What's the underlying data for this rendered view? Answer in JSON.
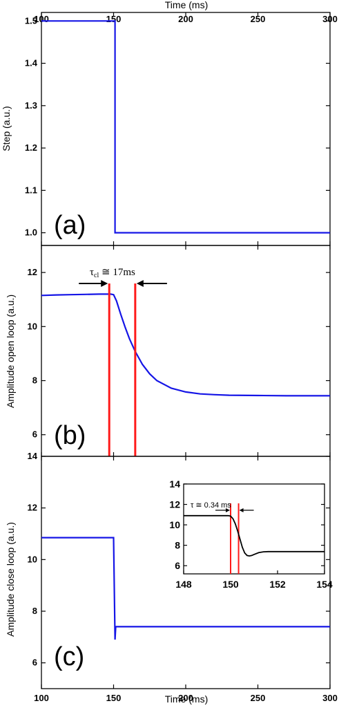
{
  "chart_data": [
    {
      "id": "a",
      "type": "line",
      "panel_label": "(a)",
      "xlabel_top": "Time (ms)",
      "ylabel": "Step (a.u.)",
      "xlim": [
        100,
        300
      ],
      "ylim": [
        0.97,
        1.52
      ],
      "xticks": [
        100,
        150,
        200,
        250,
        300
      ],
      "yticks": [
        1.0,
        1.1,
        1.2,
        1.3,
        1.4,
        1.5
      ],
      "series": [
        {
          "color": "#1515e6",
          "x": [
            100,
            151,
            151,
            300
          ],
          "y": [
            1.5,
            1.5,
            1.0,
            1.0
          ]
        }
      ]
    },
    {
      "id": "b",
      "type": "line",
      "panel_label": "(b)",
      "ylabel": "Amplitude open loop (a.u.)",
      "xlim": [
        100,
        300
      ],
      "ylim": [
        5.2,
        13.0
      ],
      "yticks": [
        6,
        8,
        10,
        12
      ],
      "series": [
        {
          "color": "#1515e6",
          "x": [
            100,
            110,
            120,
            130,
            140,
            148,
            150,
            152,
            155,
            158,
            161,
            165,
            170,
            175,
            180,
            190,
            200,
            210,
            220,
            230,
            250,
            270,
            300
          ],
          "y": [
            11.15,
            11.17,
            11.18,
            11.19,
            11.2,
            11.2,
            11.18,
            10.95,
            10.45,
            9.98,
            9.55,
            9.08,
            8.6,
            8.25,
            8.0,
            7.72,
            7.58,
            7.51,
            7.48,
            7.46,
            7.45,
            7.44,
            7.44
          ]
        }
      ],
      "markers": [
        147,
        165
      ],
      "annotation": {
        "symbol": "τ",
        "subscript": "cl",
        "text": " ≅ 17ms"
      }
    },
    {
      "id": "c",
      "type": "line",
      "panel_label": "(c)",
      "xlabel": "Time (ms)",
      "ylabel": "Amplitude close loop (a.u.)",
      "xlim": [
        100,
        300
      ],
      "ylim": [
        5.0,
        14.0
      ],
      "xticks": [
        100,
        150,
        200,
        250,
        300
      ],
      "yticks": [
        6,
        8,
        10,
        12,
        14
      ],
      "series": [
        {
          "color": "#1515e6",
          "x": [
            100,
            150,
            151,
            151.5,
            152,
            300
          ],
          "y": [
            10.85,
            10.85,
            6.9,
            7.4,
            7.4,
            7.4
          ]
        }
      ],
      "inset": {
        "xlim": [
          148,
          154
        ],
        "ylim": [
          5.2,
          14.0
        ],
        "xticks": [
          148,
          150,
          152,
          154
        ],
        "yticks": [
          6,
          8,
          10,
          12,
          14
        ],
        "series": [
          {
            "color": "#000000",
            "x": [
              148,
              149,
              149.9,
              150,
              150.1,
              150.2,
              150.3,
              150.4,
              150.5,
              150.6,
              150.7,
              150.8,
              150.9,
              151,
              151.2,
              151.4,
              151.6,
              152,
              153,
              154
            ],
            "y": [
              10.9,
              10.9,
              10.9,
              10.85,
              10.6,
              10.1,
              9.4,
              8.6,
              7.8,
              7.25,
              7.0,
              6.95,
              7.0,
              7.1,
              7.28,
              7.36,
              7.38,
              7.38,
              7.38,
              7.38
            ]
          }
        ],
        "markers": [
          150.0,
          150.34
        ],
        "annotation": {
          "text": "τ ≅ 0.34 ms"
        }
      }
    }
  ]
}
